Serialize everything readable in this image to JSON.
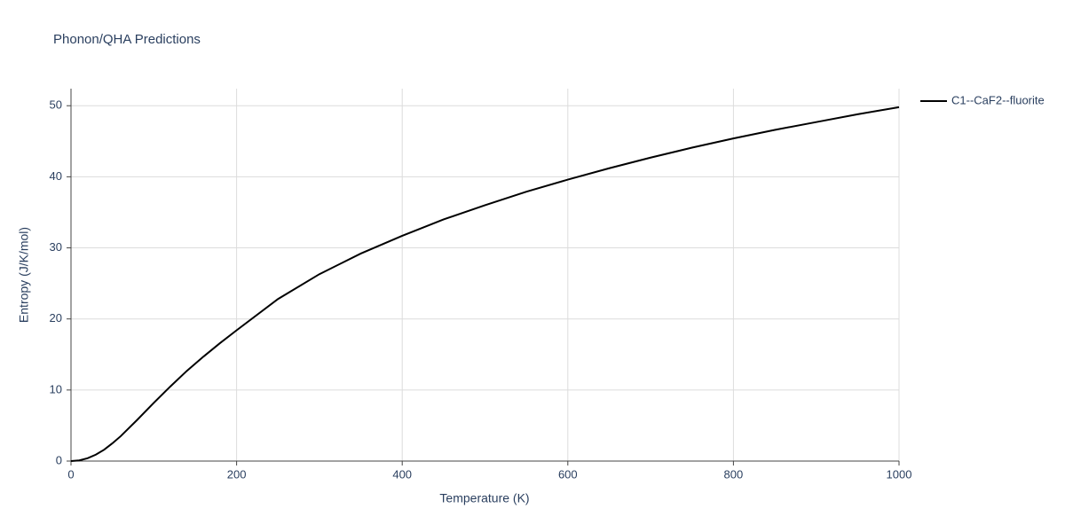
{
  "chart_data": {
    "type": "line",
    "title": "Phonon/QHA Predictions",
    "xlabel": "Temperature (K)",
    "ylabel": "Entropy (J/K/mol)",
    "x": [
      0,
      10,
      20,
      30,
      40,
      50,
      60,
      80,
      100,
      120,
      140,
      160,
      180,
      200,
      250,
      300,
      350,
      400,
      450,
      500,
      550,
      600,
      650,
      700,
      750,
      800,
      850,
      900,
      950,
      1000
    ],
    "series": [
      {
        "name": "C1--CaF2--fluorite",
        "color": "#000000",
        "values": [
          0,
          0.1,
          0.4,
          0.9,
          1.6,
          2.5,
          3.5,
          5.8,
          8.2,
          10.5,
          12.7,
          14.7,
          16.6,
          18.4,
          22.8,
          26.3,
          29.2,
          31.7,
          34.0,
          36.0,
          37.9,
          39.6,
          41.2,
          42.7,
          44.1,
          45.4,
          46.6,
          47.7,
          48.8,
          49.8
        ]
      }
    ],
    "xlim": [
      0,
      1000
    ],
    "xticks": [
      0,
      200,
      400,
      600,
      800,
      1000
    ],
    "ylim": [
      0,
      52.4
    ],
    "yticks": [
      0,
      10,
      20,
      30,
      40,
      50
    ],
    "grid": true,
    "legend": "right"
  }
}
